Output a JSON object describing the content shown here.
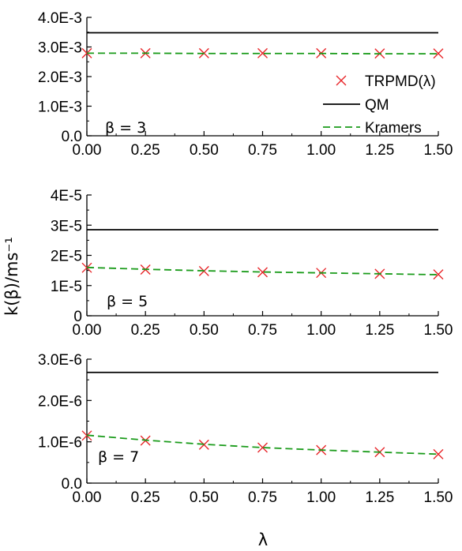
{
  "chart_data": {
    "type": "line",
    "ylabel": "k(β)/ms⁻¹",
    "xlabel": "λ",
    "legend": {
      "placement": "top-panel-right",
      "entries": [
        {
          "label": "TRPMD(λ)",
          "style": "cross",
          "color": "#e8262a"
        },
        {
          "label": "QM",
          "style": "solid-line",
          "color": "#000000"
        },
        {
          "label": "Kramers",
          "style": "dashed-line",
          "color": "#1a9b1a"
        }
      ]
    },
    "panels": [
      {
        "label": "β = 3",
        "xlim": [
          0,
          1.5
        ],
        "ylim": [
          0,
          0.004
        ],
        "xticks": [
          0,
          0.25,
          0.5,
          0.75,
          1.0,
          1.25,
          1.5
        ],
        "xtick_labels": [
          "0.00",
          "0.25",
          "0.50",
          "0.75",
          "1.00",
          "1.25",
          "1.50"
        ],
        "yticks": [
          0,
          0.001,
          0.002,
          0.003,
          0.004
        ],
        "ytick_labels": [
          "0.0",
          "1.0E-3",
          "2.0E-3",
          "3.0E-3",
          "4.0E-3"
        ],
        "series": [
          {
            "name": "TRPMD(λ)",
            "x": [
              0,
              0.25,
              0.5,
              0.75,
              1.0,
              1.25,
              1.5
            ],
            "y": [
              0.00279,
              0.00279,
              0.00279,
              0.00279,
              0.00279,
              0.00278,
              0.00278
            ]
          },
          {
            "name": "QM",
            "x": [
              0,
              1.5
            ],
            "y": [
              0.00348,
              0.00348
            ]
          },
          {
            "name": "Kramers",
            "x": [
              0,
              0.25,
              0.5,
              0.75,
              1.0,
              1.25,
              1.5
            ],
            "y": [
              0.00279,
              0.00279,
              0.00278,
              0.00278,
              0.00278,
              0.00277,
              0.00277
            ]
          }
        ]
      },
      {
        "label": "β = 5",
        "xlim": [
          0,
          1.5
        ],
        "ylim": [
          0,
          4e-05
        ],
        "xticks": [
          0,
          0.25,
          0.5,
          0.75,
          1.0,
          1.25,
          1.5
        ],
        "xtick_labels": [
          "0.00",
          "0.25",
          "0.50",
          "0.75",
          "1.00",
          "1.25",
          "1.50"
        ],
        "yticks": [
          0,
          1e-05,
          2e-05,
          3e-05,
          4e-05
        ],
        "ytick_labels": [
          "0",
          "1E-5",
          "2E-5",
          "3E-5",
          "4E-5"
        ],
        "series": [
          {
            "name": "TRPMD(λ)",
            "x": [
              0,
              0.25,
              0.5,
              0.75,
              1.0,
              1.25,
              1.5
            ],
            "y": [
              1.59e-05,
              1.53e-05,
              1.48e-05,
              1.44e-05,
              1.42e-05,
              1.39e-05,
              1.37e-05
            ]
          },
          {
            "name": "QM",
            "x": [
              0,
              1.5
            ],
            "y": [
              2.85e-05,
              2.85e-05
            ]
          },
          {
            "name": "Kramers",
            "x": [
              0,
              0.25,
              0.5,
              0.75,
              1.0,
              1.25,
              1.5
            ],
            "y": [
              1.6e-05,
              1.54e-05,
              1.49e-05,
              1.45e-05,
              1.42e-05,
              1.39e-05,
              1.36e-05
            ]
          }
        ]
      },
      {
        "label": "β = 7",
        "xlim": [
          0,
          1.5
        ],
        "ylim": [
          0,
          3e-06
        ],
        "xticks": [
          0,
          0.25,
          0.5,
          0.75,
          1.0,
          1.25,
          1.5
        ],
        "xtick_labels": [
          "0.00",
          "0.25",
          "0.50",
          "0.75",
          "1.00",
          "1.25",
          "1.50"
        ],
        "yticks": [
          0,
          1e-06,
          2e-06,
          3e-06
        ],
        "ytick_labels": [
          "0.0",
          "1.0E-6",
          "2.0E-6",
          "3.0E-6"
        ],
        "series": [
          {
            "name": "TRPMD(λ)",
            "x": [
              0,
              0.25,
              0.5,
              0.75,
              1.0,
              1.25,
              1.5
            ],
            "y": [
              1.15e-06,
              1.03e-06,
              9.3e-07,
              8.6e-07,
              8e-07,
              7.5e-07,
              7e-07
            ]
          },
          {
            "name": "QM",
            "x": [
              0,
              1.5
            ],
            "y": [
              2.68e-06,
              2.68e-06
            ]
          },
          {
            "name": "Kramers",
            "x": [
              0,
              0.25,
              0.5,
              0.75,
              1.0,
              1.25,
              1.5
            ],
            "y": [
              1.16e-06,
              1.04e-06,
              9.4e-07,
              8.6e-07,
              8e-07,
              7.5e-07,
              7e-07
            ]
          }
        ]
      }
    ]
  }
}
